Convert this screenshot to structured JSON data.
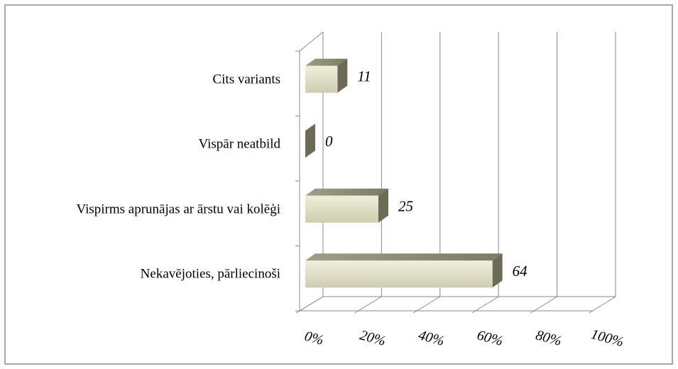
{
  "chart_data": {
    "type": "bar3d_horizontal",
    "categories": [
      "Nekavējoties, pārliecinoši",
      "Vispirms aprunājas ar ārstu vai kolēģi",
      "Vispār neatbild",
      "Cits variants"
    ],
    "values": [
      64,
      25,
      0,
      11
    ],
    "color": "#dedcc2",
    "xlim": [
      0,
      100
    ],
    "xticks": [
      {
        "value": 0,
        "label": "0%"
      },
      {
        "value": 20,
        "label": "20%"
      },
      {
        "value": 40,
        "label": "40%"
      },
      {
        "value": 60,
        "label": "60%"
      },
      {
        "value": 80,
        "label": "80%"
      },
      {
        "value": 100,
        "label": "100%"
      }
    ],
    "grid": true
  }
}
